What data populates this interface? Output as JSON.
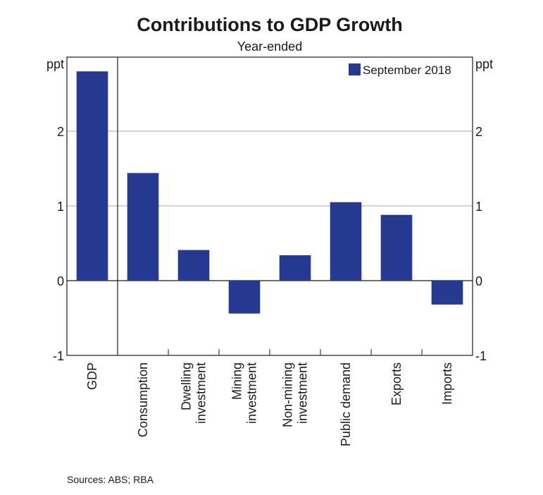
{
  "chart_data": {
    "type": "bar",
    "title": "Contributions to GDP Growth",
    "subtitle": "Year-ended",
    "ylabel_left": "ppt",
    "ylabel_right": "ppt",
    "xlabel": "",
    "ylim": [
      -1,
      2.9
    ],
    "yticks": [
      -1,
      0,
      1,
      2
    ],
    "ytick_labels": [
      "-1",
      "0",
      "1",
      "2"
    ],
    "grid": true,
    "legend_position": "top-right",
    "categories": [
      [
        "GDP"
      ],
      [
        "Consumption"
      ],
      [
        "Dwelling",
        "investment"
      ],
      [
        "Mining",
        "investment"
      ],
      [
        "Non-mining",
        "investment"
      ],
      [
        "Public demand"
      ],
      [
        "Exports"
      ],
      [
        "Imports"
      ]
    ],
    "series": [
      {
        "name": "September 2018",
        "color": "#263a92",
        "values": [
          2.8,
          1.44,
          0.41,
          -0.44,
          0.34,
          1.05,
          0.88,
          -0.32
        ]
      }
    ],
    "separator_after_category": 0,
    "source": "Sources: ABS; RBA"
  }
}
